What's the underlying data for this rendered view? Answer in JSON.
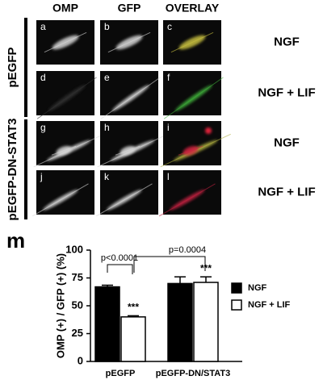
{
  "figure": {
    "columns": [
      "OMP",
      "GFP",
      "OVERLAY"
    ],
    "groups": [
      "pEGFP",
      "pEGFP-DN-STAT3"
    ],
    "conditions": [
      "NGF",
      "NGF + LIF",
      "NGF",
      "NGF + LIF"
    ],
    "letters": [
      "a",
      "b",
      "c",
      "d",
      "e",
      "f",
      "g",
      "h",
      "i",
      "j",
      "k",
      "l"
    ],
    "chart_letter": "m"
  },
  "chart_data": {
    "type": "bar",
    "ylabel": "OMP (+) / GFP (+) (%)",
    "categories": [
      "pEGFP",
      "pEGFP-DN/STAT3"
    ],
    "series": [
      {
        "name": "NGF",
        "color": "#000000",
        "values": [
          67,
          70
        ],
        "errors": [
          1.5,
          6
        ]
      },
      {
        "name": "NGF + LIF",
        "color": "#ffffff",
        "values": [
          40,
          71
        ],
        "errors": [
          1,
          5
        ]
      }
    ],
    "ylim": [
      0,
      100
    ],
    "yticks": [
      0,
      25,
      50,
      75,
      100
    ],
    "legend": "right",
    "annotations": [
      "p<0.0001",
      "p=0.0004",
      "***",
      "***"
    ]
  }
}
